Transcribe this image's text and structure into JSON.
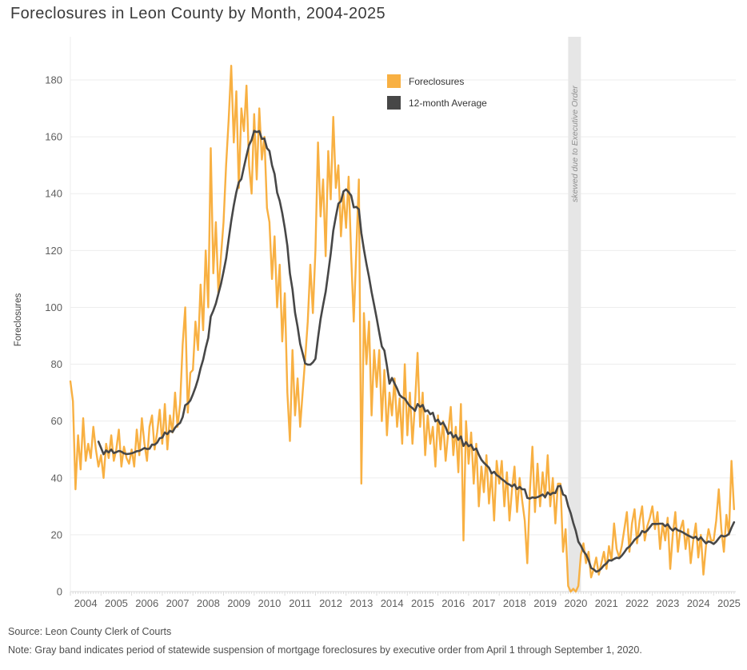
{
  "title": "Foreclosures in Leon County by Month, 2004-2025",
  "footer": {
    "source": "Source: Leon County Clerk of Courts",
    "note": "Note: Gray band indicates period of statewide suspension of mortgage foreclosures by executive order from April 1 through September 1, 2020."
  },
  "chart_data": {
    "type": "line",
    "title": "Foreclosures in Leon County by Month, 2004-2025",
    "ylabel": "Foreclosures",
    "xlabel": "",
    "frequency": "monthly",
    "x_start": "2004-01",
    "x_end": "2025-09",
    "ylim": [
      0,
      190
    ],
    "grid": "horizontal",
    "legend_position": "top-center-inside",
    "y_ticks": [
      0,
      20,
      40,
      60,
      80,
      100,
      120,
      140,
      160,
      180
    ],
    "year_labels": [
      2004,
      2005,
      2006,
      2007,
      2008,
      2009,
      2010,
      2011,
      2012,
      2013,
      2014,
      2015,
      2016,
      2017,
      2018,
      2019,
      2020,
      2021,
      2022,
      2023,
      2024,
      2025
    ],
    "annotation_band": {
      "label": "skewed due to Executive Order",
      "start": "2020-04",
      "end": "2020-09",
      "color": "#e6e6e6",
      "label_color": "#909090"
    },
    "series": [
      {
        "name": "Foreclosures",
        "color": "#F8B042",
        "values": [
          74,
          67,
          36,
          55,
          43,
          61,
          46,
          52,
          47,
          58,
          50,
          44,
          48,
          40,
          52,
          47,
          55,
          46,
          50,
          57,
          44,
          51,
          47,
          45,
          50,
          44,
          57,
          48,
          61,
          52,
          46,
          58,
          62,
          50,
          56,
          64,
          52,
          66,
          50,
          62,
          56,
          70,
          58,
          66,
          87,
          100,
          63,
          77,
          78,
          95,
          85,
          108,
          92,
          120,
          100,
          156,
          112,
          130,
          105,
          118,
          130,
          150,
          166,
          185,
          158,
          176,
          142,
          170,
          162,
          178,
          150,
          140,
          168,
          145,
          170,
          152,
          160,
          135,
          130,
          110,
          125,
          100,
          115,
          88,
          105,
          70,
          53,
          85,
          62,
          75,
          58,
          70,
          82,
          95,
          115,
          98,
          120,
          158,
          132,
          145,
          118,
          155,
          138,
          167,
          142,
          150,
          125,
          140,
          128,
          146,
          118,
          95,
          120,
          145,
          38,
          98,
          80,
          95,
          62,
          85,
          72,
          85,
          60,
          78,
          55,
          70,
          62,
          75,
          58,
          68,
          52,
          80,
          55,
          70,
          52,
          66,
          84,
          58,
          70,
          48,
          62,
          52,
          58,
          44,
          62,
          50,
          60,
          46,
          56,
          65,
          48,
          58,
          42,
          66,
          18,
          60,
          45,
          56,
          38,
          52,
          30,
          44,
          35,
          48,
          31,
          42,
          25,
          46,
          38,
          46,
          30,
          42,
          25,
          36,
          44,
          28,
          40,
          32,
          25,
          10,
          35,
          51,
          28,
          45,
          30,
          42,
          33,
          48,
          30,
          40,
          24,
          38,
          38,
          14,
          22,
          2,
          0,
          1,
          0,
          2,
          13,
          17,
          10,
          14,
          5,
          8,
          12,
          6,
          10,
          14,
          8,
          16,
          11,
          24,
          15,
          12,
          16,
          22,
          28,
          14,
          24,
          29,
          17,
          25,
          30,
          18,
          23,
          26,
          30,
          22,
          28,
          15,
          24,
          18,
          26,
          8,
          20,
          28,
          14,
          22,
          25,
          15,
          22,
          10,
          18,
          24,
          12,
          20,
          6,
          16,
          22,
          18,
          18,
          25,
          36,
          22,
          14,
          27,
          20,
          46,
          29
        ]
      },
      {
        "name": "12-month Average",
        "color": "#474747",
        "derived": "trailing 12-month mean of the Foreclosures series, plotted from the 12th month onward"
      }
    ]
  }
}
